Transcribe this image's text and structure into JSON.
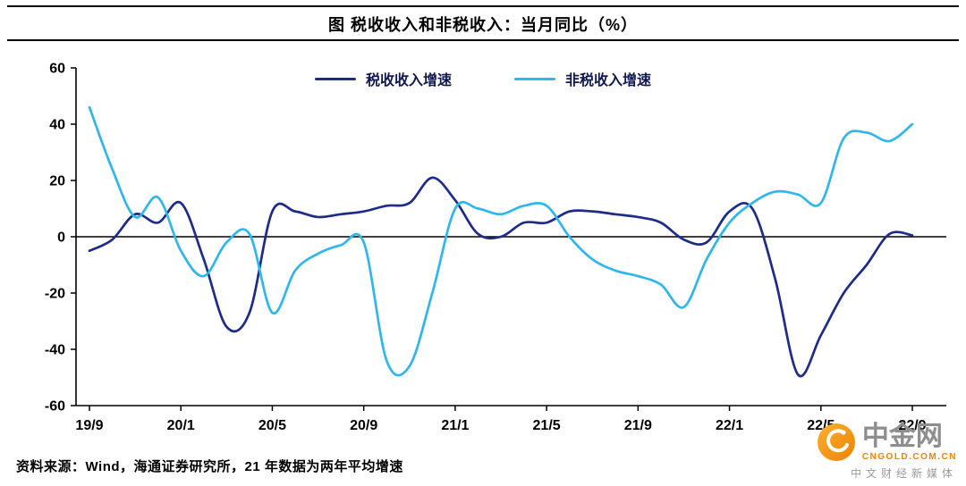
{
  "source_note": "资料来源：Wind，海通证券研究所，21 年数据为两年平均增速",
  "logo": {
    "name": "中金网",
    "domain": "CNGOLD.COM.CN",
    "tagline": "中文财经新媒体",
    "accent": "#f08300",
    "icon": "gold-coin-swirl-icon",
    "icon_color": "#f5a623"
  },
  "colors": {
    "axis": "#000000",
    "tax_line": "#1e2b87",
    "nontax_line": "#2fb6ea"
  },
  "chart_data": {
    "type": "line",
    "title": "图 税收收入和非税收入：当月同比（%）",
    "grid": false,
    "legend_position": "top-center",
    "ylim": [
      -60,
      60
    ],
    "yticks": [
      60,
      40,
      20,
      0,
      -20,
      -40,
      -60
    ],
    "categories": [
      "19/9",
      "19/10",
      "19/11",
      "19/12",
      "20/1",
      "20/2",
      "20/3",
      "20/4",
      "20/5",
      "20/6",
      "20/7",
      "20/8",
      "20/9",
      "20/10",
      "20/11",
      "20/12",
      "21/1",
      "21/2",
      "21/3",
      "21/4",
      "21/5",
      "21/6",
      "21/7",
      "21/8",
      "21/9",
      "21/10",
      "21/11",
      "21/12",
      "22/1",
      "22/2",
      "22/3",
      "22/4",
      "22/5",
      "22/6",
      "22/7",
      "22/8",
      "22/9"
    ],
    "x_tick_labels": [
      "19/9",
      "20/1",
      "20/5",
      "20/9",
      "21/1",
      "21/5",
      "21/9",
      "22/1",
      "22/5",
      "22/9"
    ],
    "x_tick_indices": [
      0,
      4,
      8,
      12,
      16,
      20,
      24,
      28,
      32,
      36
    ],
    "series": [
      {
        "name": "税收收入增速",
        "color": "#1e2b87",
        "values": [
          -5,
          -1,
          8,
          5,
          12,
          -8,
          -32,
          -27,
          9,
          9,
          7,
          8,
          9,
          11,
          12,
          21,
          13,
          1,
          0,
          5,
          5,
          9,
          9,
          8,
          7,
          5,
          -1,
          -2,
          9,
          10,
          -15,
          -49,
          -35,
          -20,
          -10,
          1,
          0.5
        ]
      },
      {
        "name": "非税收入增速",
        "color": "#2fb6ea",
        "values": [
          46,
          24,
          7,
          14,
          -5,
          -14,
          -2,
          1,
          -27,
          -12,
          -6,
          -3,
          -2,
          -44,
          -46,
          -20,
          10,
          10,
          8,
          11,
          11,
          0,
          -8,
          -12,
          -14,
          -17,
          -25,
          -8,
          5,
          12,
          16,
          15,
          12,
          35,
          37,
          34,
          40
        ]
      }
    ]
  }
}
